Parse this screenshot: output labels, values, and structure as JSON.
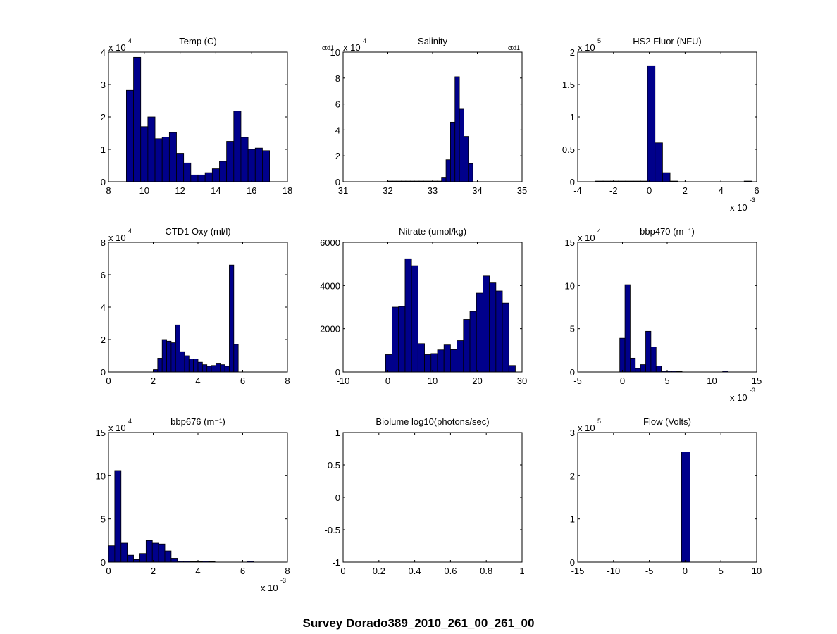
{
  "figure_title": "Survey Dorado389_2010_261_00_261_00",
  "colors": {
    "bar_fill": "#00008b",
    "bar_edge": "#000000",
    "axes": "#000000",
    "background": "#ffffff"
  },
  "chart_data": [
    {
      "type": "bar",
      "title": "Temp (C)",
      "exponent": "4",
      "exponent_side": "y",
      "xlim": [
        8,
        18
      ],
      "ylim": [
        0,
        4
      ],
      "xticks": [
        "8",
        "10",
        "12",
        "14",
        "16",
        "18"
      ],
      "yticks": [
        "0",
        "1",
        "2",
        "3",
        "4"
      ],
      "bin_start": 9.0,
      "bin_width": 0.4,
      "values": [
        2.82,
        3.84,
        1.7,
        2.0,
        1.33,
        1.38,
        1.52,
        0.88,
        0.58,
        0.21,
        0.21,
        0.28,
        0.4,
        0.63,
        1.25,
        2.18,
        1.37,
        1.0,
        1.04,
        0.96
      ]
    },
    {
      "type": "bar",
      "title": "Salinity",
      "exponent": "4",
      "exponent_side": "y",
      "corner_labels": [
        "ctd1",
        "ctd1"
      ],
      "xlim": [
        31,
        35
      ],
      "ylim": [
        0,
        10
      ],
      "xticks": [
        "31",
        "32",
        "33",
        "34",
        "35"
      ],
      "yticks": [
        "0",
        "2",
        "4",
        "6",
        "8",
        "10"
      ],
      "bin_start": 33.1,
      "bin_width": 0.1,
      "values": [
        0.05,
        0.35,
        1.7,
        4.6,
        8.1,
        5.6,
        3.5,
        1.4
      ],
      "tail_values": [
        0.05,
        0.05,
        0.05,
        0.05,
        0.05,
        0.05,
        0.05,
        0.05,
        0.05,
        0.05,
        0.05
      ],
      "tail_start": 32.0
    },
    {
      "type": "bar",
      "title": "HS2 Fluor (NFU)",
      "exponent": "5",
      "exponent_side": "y",
      "x_exponent": "-3",
      "xlim": [
        -4,
        6
      ],
      "ylim": [
        0,
        2
      ],
      "xticks": [
        "-4",
        "-2",
        "0",
        "2",
        "4",
        "6"
      ],
      "yticks": [
        "0",
        "0.5",
        "1",
        "1.5",
        "2"
      ],
      "bin_start": -0.1,
      "bin_width": 0.42,
      "values": [
        1.79,
        0.6,
        0.14,
        0.01
      ],
      "tail_values": [
        0.01,
        0.01,
        0.01,
        0.01,
        0.01,
        0.01,
        0.01
      ],
      "tail_start": -3.0,
      "outlier": [
        5.3,
        0.01
      ]
    },
    {
      "type": "bar",
      "title": "CTD1 Oxy (ml/l)",
      "exponent": "4",
      "exponent_side": "y",
      "xlim": [
        0,
        8
      ],
      "ylim": [
        0,
        8
      ],
      "xticks": [
        "0",
        "2",
        "4",
        "6",
        "8"
      ],
      "yticks": [
        "0",
        "2",
        "4",
        "6",
        "8"
      ],
      "bin_start": 2.0,
      "bin_width": 0.2,
      "values": [
        0.15,
        0.85,
        2.0,
        1.9,
        1.8,
        2.9,
        1.25,
        1.0,
        0.8,
        0.8,
        0.6,
        0.45,
        0.35,
        0.4,
        0.5,
        0.45,
        0.35,
        6.6,
        1.7
      ]
    },
    {
      "type": "bar",
      "title": "Nitrate (umol/kg)",
      "exponent": "",
      "exponent_side": "y",
      "xlim": [
        -10,
        30
      ],
      "ylim": [
        0,
        6000
      ],
      "xticks": [
        "-10",
        "0",
        "10",
        "20",
        "30"
      ],
      "yticks": [
        "0",
        "2000",
        "4000",
        "6000"
      ],
      "bin_start": -0.5,
      "bin_width": 1.45,
      "values": [
        800,
        3000,
        3030,
        5240,
        4920,
        1310,
        800,
        850,
        1020,
        1250,
        1030,
        1450,
        2430,
        2800,
        3650,
        4440,
        4120,
        3750,
        3190,
        300
      ]
    },
    {
      "type": "bar",
      "title": "bbp470 (m⁻¹)",
      "exponent": "4",
      "exponent_side": "y",
      "x_exponent": "-3",
      "xlim": [
        -5,
        15
      ],
      "ylim": [
        0,
        15
      ],
      "xticks": [
        "-5",
        "0",
        "5",
        "10",
        "15"
      ],
      "yticks": [
        "0",
        "5",
        "10",
        "15"
      ],
      "bin_start": -0.3,
      "bin_width": 0.58,
      "values": [
        3.9,
        10.1,
        1.6,
        0.4,
        0.85,
        4.7,
        2.9,
        0.7,
        0.1,
        0.1,
        0.1,
        0.05
      ],
      "outlier": [
        11.2,
        0.1
      ]
    },
    {
      "type": "bar",
      "title": "bbp676 (m⁻¹)",
      "exponent": "4",
      "exponent_side": "y",
      "x_exponent": "-3",
      "xlim": [
        0,
        8
      ],
      "ylim": [
        0,
        15
      ],
      "xticks": [
        "0",
        "2",
        "4",
        "6",
        "8"
      ],
      "yticks": [
        "0",
        "5",
        "10",
        "15"
      ],
      "bin_start": 0.0,
      "bin_width": 0.28,
      "values": [
        1.9,
        10.6,
        2.2,
        0.8,
        0.3,
        1.0,
        2.5,
        2.2,
        2.1,
        1.3,
        0.45,
        0.1,
        0.1,
        0.05,
        0.05,
        0.1,
        0.05
      ],
      "outlier": [
        6.2,
        0.1
      ]
    },
    {
      "type": "bar",
      "title": "Biolume log10(photons/sec)",
      "exponent": "",
      "exponent_side": "y",
      "xlim": [
        0,
        1
      ],
      "ylim": [
        -1,
        1
      ],
      "xticks": [
        "0",
        "0.2",
        "0.4",
        "0.6",
        "0.8",
        "1"
      ],
      "yticks": [
        "-1",
        "-0.5",
        "0",
        "0.5",
        "1"
      ],
      "bin_start": 0,
      "bin_width": 0.1,
      "values": []
    },
    {
      "type": "bar",
      "title": "Flow (Volts)",
      "exponent": "5",
      "exponent_side": "y",
      "xlim": [
        -15,
        10
      ],
      "ylim": [
        0,
        3
      ],
      "xticks": [
        "-15",
        "-10",
        "-5",
        "0",
        "5",
        "10"
      ],
      "yticks": [
        "0",
        "1",
        "2",
        "3"
      ],
      "bin_start": -0.5,
      "bin_width": 1.2,
      "values": [
        2.55
      ]
    }
  ]
}
